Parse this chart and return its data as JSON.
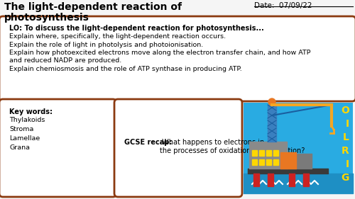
{
  "title_line1": "The light-dependent reaction of",
  "title_line2": "photosynthesis",
  "date_label": "Date:  07/09/22",
  "bg_color": "#f5f5f5",
  "border_color": "#8B3A10",
  "lo_bold": "LO: To discuss the light-dependent reaction for photosynthesis...",
  "lo_points": [
    "Explain where, specifically, the light-dependent reaction occurs.",
    "Explain the role of light in photolysis and photoionisation.",
    "Explain how photoexcited electrons move along the electron transfer chain, and how ATP\nand reduced NADP are produced.",
    "Explain chemiosmosis and the role of ATP synthase in producing ATP."
  ],
  "key_words_title": "Key words:",
  "key_words": [
    "Thylakoids",
    "Stroma",
    "Lamellae",
    "Grana"
  ],
  "gcse_recap_bold": "GCSE recap:",
  "gcse_recap_text": " What happens to electrons in\nthe processes of oxidation and reduction?",
  "oilrig_bg": "#29ABE2",
  "oilrig_letter_color": "#FFD700",
  "oilrig_letters": [
    "O",
    "I",
    "L",
    "R",
    "I",
    "G"
  ]
}
